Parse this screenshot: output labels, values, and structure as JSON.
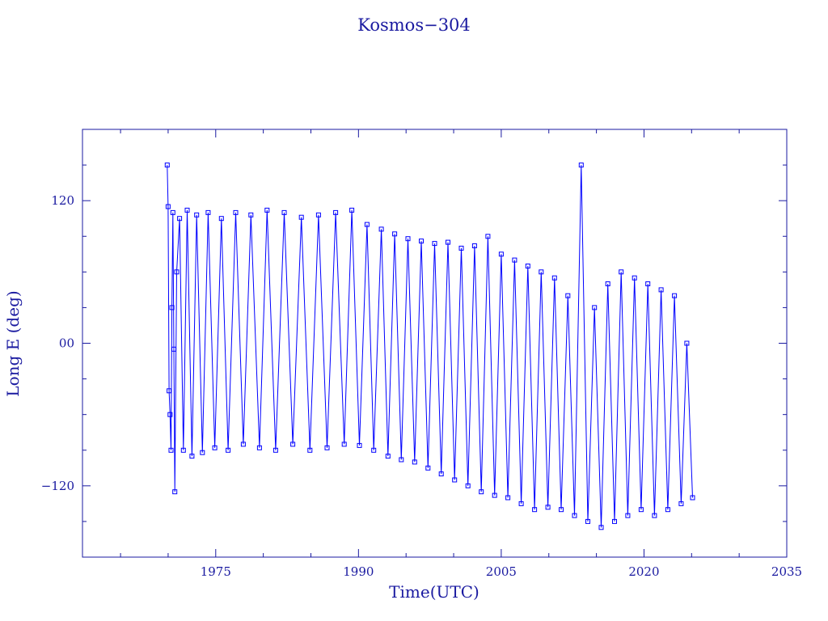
{
  "chart_data": {
    "type": "line",
    "title": "Kosmos−304",
    "xlabel": "Time(UTC)",
    "ylabel": "Long E (deg)",
    "x_unit": "year",
    "xlim": [
      1961,
      2035
    ],
    "ylim": [
      -180,
      180
    ],
    "x_ticks": [
      1975,
      1990,
      2005,
      2020,
      2035
    ],
    "x_tick_labels": [
      "1975",
      "1990",
      "2005",
      "2020",
      "2035"
    ],
    "y_ticks": [
      -120,
      0,
      120
    ],
    "y_tick_labels": [
      "−120",
      "00",
      "120"
    ],
    "grid": false,
    "legend": "none",
    "colors": {
      "series": "#0000ff",
      "axes": "#1a1aa0"
    },
    "series": [
      {
        "x": [
          1969.9,
          1970.0,
          1970.1,
          1970.2,
          1970.3,
          1970.4,
          1970.5,
          1970.6,
          1970.7,
          1970.9,
          1971.2,
          1971.6,
          1972.0,
          1972.5,
          1973.0,
          1973.6,
          1974.2,
          1974.9,
          1975.6,
          1976.3,
          1977.1,
          1977.9,
          1978.7,
          1979.6,
          1980.4,
          1981.3,
          1982.2,
          1983.1,
          1984.0,
          1984.9,
          1985.8,
          1986.7,
          1987.6,
          1988.5,
          1989.3,
          1990.1,
          1990.9,
          1991.6,
          1992.4,
          1993.1,
          1993.8,
          1994.5,
          1995.2,
          1995.9,
          1996.6,
          1997.3,
          1998.0,
          1998.7,
          1999.4,
          2000.1,
          2000.8,
          2001.5,
          2002.2,
          2002.9,
          2003.6,
          2004.3,
          2005.0,
          2005.7,
          2006.4,
          2007.1,
          2007.8,
          2008.5,
          2009.2,
          2009.9,
          2010.6,
          2011.3,
          2012.0,
          2012.7,
          2013.4,
          2014.1,
          2014.8,
          2015.5,
          2016.2,
          2016.9,
          2017.6,
          2018.3,
          2019.0,
          2019.7,
          2020.4,
          2021.1,
          2021.8,
          2022.5,
          2023.2,
          2023.9,
          2024.5,
          2025.1
        ],
        "y": [
          150,
          115,
          -40,
          -60,
          -90,
          30,
          110,
          -5,
          -125,
          60,
          105,
          -90,
          112,
          -95,
          108,
          -92,
          110,
          -88,
          105,
          -90,
          110,
          -85,
          108,
          -88,
          112,
          -90,
          110,
          -85,
          106,
          -90,
          108,
          -88,
          110,
          -85,
          112,
          -86,
          100,
          -90,
          96,
          -95,
          92,
          -98,
          88,
          -100,
          86,
          -105,
          84,
          -110,
          85,
          -115,
          80,
          -120,
          82,
          -125,
          90,
          -128,
          75,
          -130,
          70,
          -135,
          65,
          -140,
          60,
          -138,
          55,
          -140,
          40,
          -145,
          150,
          -150,
          30,
          -155,
          50,
          -150,
          60,
          -145,
          55,
          -140,
          50,
          -145,
          45,
          -140,
          40,
          -135,
          0,
          -130
        ]
      }
    ]
  }
}
